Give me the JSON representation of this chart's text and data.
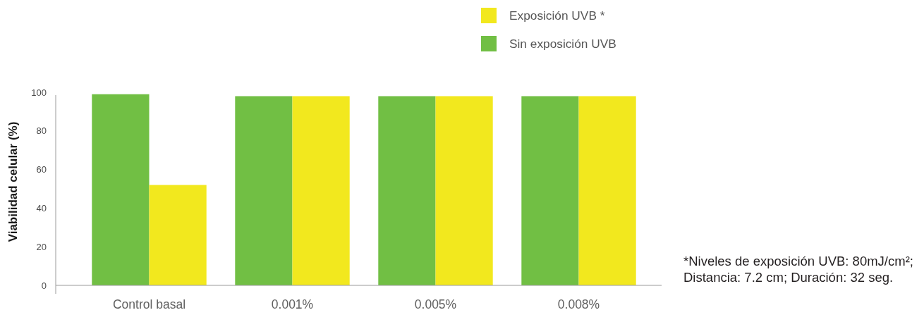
{
  "chart_data": {
    "type": "bar",
    "ylabel": "Viabilidad celular (%)",
    "categories": [
      "Control basal",
      "0.001%",
      "0.005%",
      "0.008%"
    ],
    "series": [
      {
        "name": "Sin exposición UVB",
        "color": "#71bf44",
        "values": [
          99,
          98,
          98,
          98
        ]
      },
      {
        "name": "Exposición UVB *",
        "color": "#f2e81e",
        "values": [
          52,
          98,
          98,
          98
        ]
      }
    ],
    "ylim": [
      0,
      100
    ],
    "yticks": [
      0,
      20,
      40,
      60,
      80,
      100
    ],
    "legend": "top right",
    "annotations": [
      "*Niveles de exposición UVB: 80mJ/cm²;\nDistancia: 7.2 cm; Duración: 32 seg."
    ]
  }
}
